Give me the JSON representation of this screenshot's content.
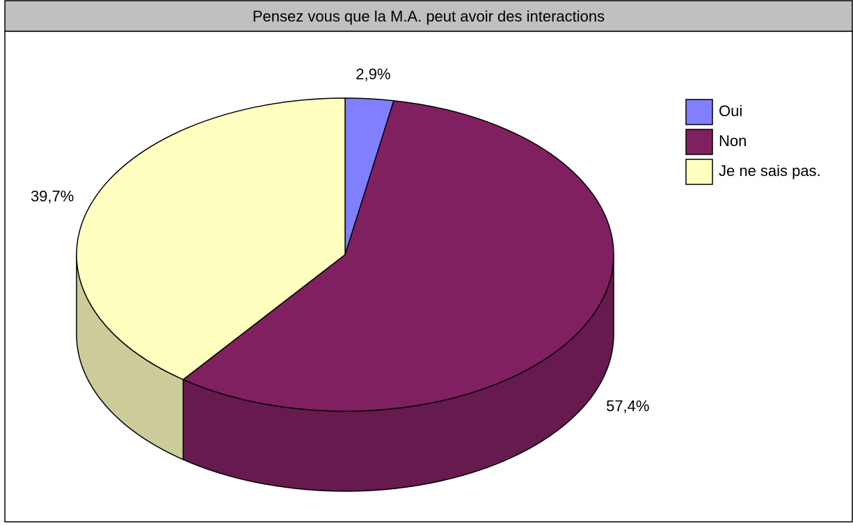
{
  "chart_data": {
    "type": "pie",
    "title": "Pensez vous que la M.A. peut avoir des interactions",
    "categories": [
      "Oui",
      "Non",
      "Je ne sais pas."
    ],
    "values": [
      2.9,
      57.4,
      39.7
    ],
    "value_labels": [
      "2,9%",
      "57,4%",
      "39,7%"
    ],
    "colors": [
      "#8080ff",
      "#802060",
      "#ffffc0"
    ],
    "legend": "right"
  }
}
